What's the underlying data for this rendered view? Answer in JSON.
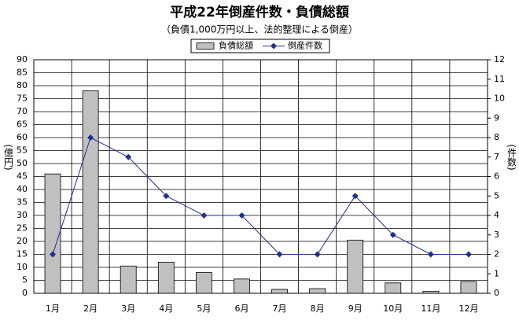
{
  "chart_data": {
    "type": "bar",
    "title": "平成22年倒産件数・負債総額",
    "subtitle": "（負債1,000万円以上、法的整理による倒産）",
    "y_label": "(億円)",
    "y2_label": "(件数)",
    "categories": [
      "1月",
      "2月",
      "3月",
      "4月",
      "5月",
      "6月",
      "7月",
      "8月",
      "9月",
      "10月",
      "11月",
      "12月"
    ],
    "series": [
      {
        "name": "負債総額",
        "type": "bar",
        "color": "#c0c0c0",
        "values": [
          46,
          78,
          10.5,
          12,
          8,
          5.5,
          1.5,
          1.8,
          20.5,
          4,
          0.8,
          4.5
        ]
      },
      {
        "name": "倒産件数",
        "type": "line",
        "axis": "y2",
        "color": "#1f2f8f",
        "values": [
          2,
          8,
          7,
          5,
          4,
          4,
          2,
          2,
          5,
          3,
          2,
          2
        ]
      }
    ],
    "ylim": [
      0,
      90
    ],
    "yticks": [
      0,
      5,
      10,
      15,
      20,
      25,
      30,
      35,
      40,
      45,
      50,
      55,
      60,
      65,
      70,
      75,
      80,
      85,
      90
    ],
    "y2lim": [
      0,
      12
    ],
    "y2ticks": [
      0,
      1,
      2,
      3,
      4,
      5,
      6,
      7,
      8,
      9,
      10,
      11,
      12
    ],
    "grid": true
  }
}
